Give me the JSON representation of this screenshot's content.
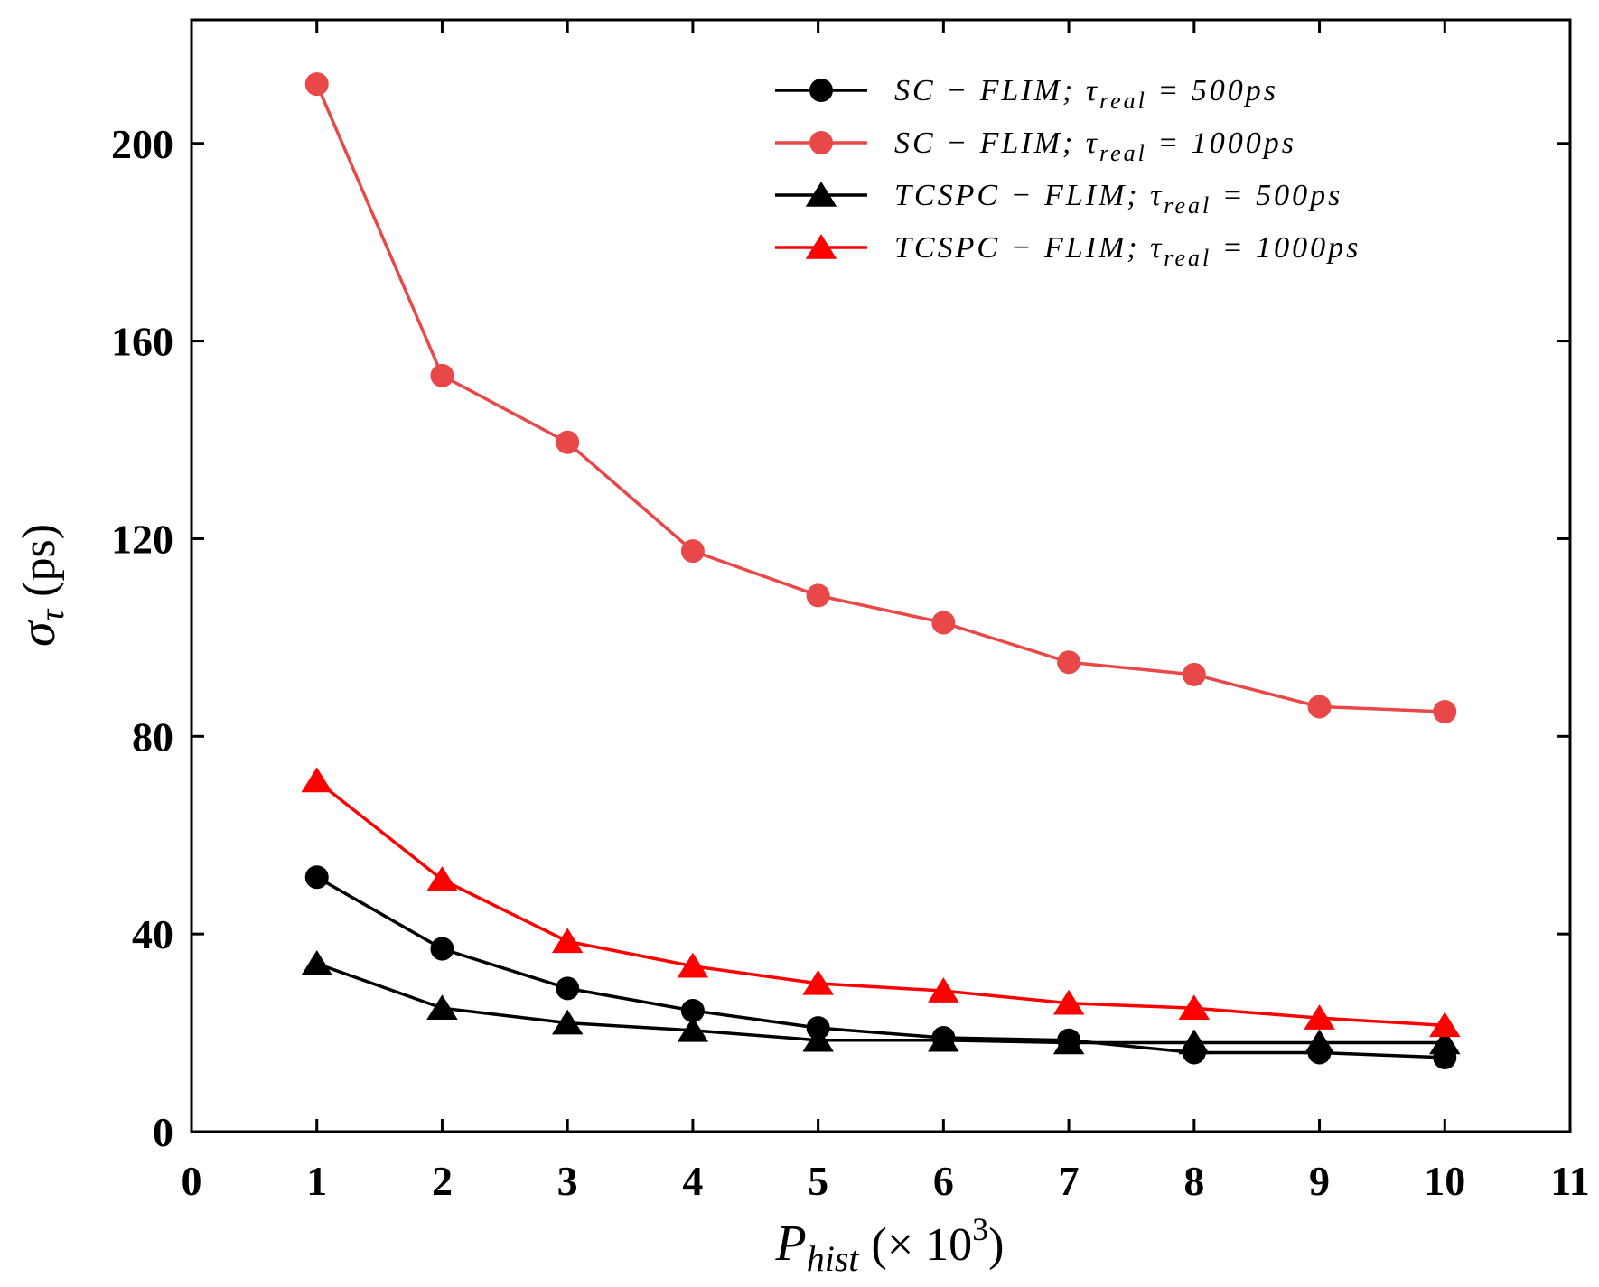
{
  "chart_data": {
    "type": "line",
    "title": "",
    "xlabel": "P_hist (× 10^3)",
    "xlabel_main": "P",
    "xlabel_sub": "hist",
    "xlabel_rest": "(× 10",
    "xlabel_sup": "3",
    "xlabel_close": ")",
    "ylabel": "σ_τ (ps)",
    "ylabel_main": "σ",
    "ylabel_sub": "τ",
    "ylabel_rest": "(ps)",
    "xlim": [
      0,
      11
    ],
    "ylim": [
      0,
      225
    ],
    "x_ticks": [
      "0",
      "1",
      "2",
      "3",
      "4",
      "5",
      "6",
      "7",
      "8",
      "9",
      "10",
      "11"
    ],
    "y_ticks": [
      "0",
      "40",
      "80",
      "120",
      "160",
      "200"
    ],
    "x_tick_values": [
      0,
      1,
      2,
      3,
      4,
      5,
      6,
      7,
      8,
      9,
      10,
      11
    ],
    "y_tick_values": [
      0,
      40,
      80,
      120,
      160,
      200
    ],
    "grid": false,
    "legend_position": "top-right",
    "x": [
      1,
      2,
      3,
      4,
      5,
      6,
      7,
      8,
      9,
      10
    ],
    "series": [
      {
        "name": "SC − FLIM; τ_real = 500ps",
        "label_main": "SC − FLIM; τ",
        "label_sub": "real",
        "label_rest": " = 500ps",
        "color": "#000000",
        "marker": "circle",
        "values": [
          51.5,
          37,
          29,
          24.5,
          21,
          19,
          18.5,
          16,
          16,
          15
        ]
      },
      {
        "name": "SC − FLIM; τ_real = 1000ps",
        "label_main": "SC − FLIM; τ",
        "label_sub": "real",
        "label_rest": " = 1000ps",
        "color": "#e84848",
        "marker": "circle",
        "values": [
          212,
          153,
          139.5,
          117.5,
          108.5,
          103,
          95,
          92.5,
          86,
          85
        ]
      },
      {
        "name": "TCSPC − FLIM; τ_real = 500ps",
        "label_main": "TCSPC − FLIM; τ",
        "label_sub": "real",
        "label_rest": " = 500ps",
        "color": "#000000",
        "marker": "triangle",
        "values": [
          34,
          25,
          22,
          20.5,
          18.5,
          18.5,
          18,
          18,
          18,
          18
        ]
      },
      {
        "name": "TCSPC − FLIM; τ_real = 1000ps",
        "label_main": "TCSPC − FLIM; τ",
        "label_sub": "real",
        "label_rest": " = 1000ps",
        "color": "#ff0000",
        "marker": "triangle",
        "values": [
          71,
          51,
          38.5,
          33.5,
          30,
          28.5,
          26,
          25,
          23,
          21.5
        ]
      }
    ]
  }
}
